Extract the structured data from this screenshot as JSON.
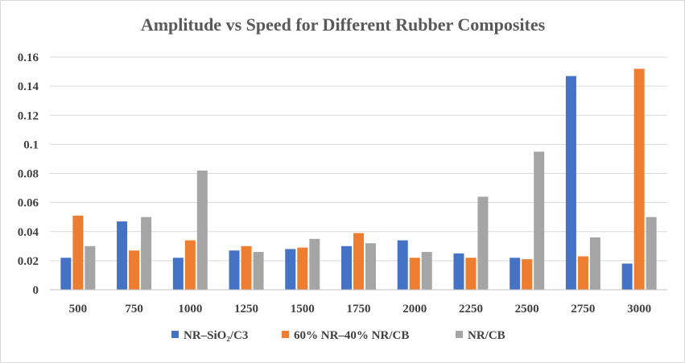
{
  "chart_data": {
    "type": "bar",
    "title": "Amplitude vs Speed for Different Rubber Composites",
    "xlabel": "",
    "ylabel": "",
    "categories": [
      "500",
      "750",
      "1000",
      "1250",
      "1500",
      "1750",
      "2000",
      "2250",
      "2500",
      "2750",
      "3000"
    ],
    "series": [
      {
        "name": "NR–SiO₂/C3",
        "color": "#4472c4",
        "values": [
          0.022,
          0.047,
          0.022,
          0.027,
          0.028,
          0.03,
          0.034,
          0.025,
          0.022,
          0.147,
          0.018
        ]
      },
      {
        "name": "60% NR–40% NR/CB",
        "color": "#ed7d31",
        "values": [
          0.051,
          0.027,
          0.034,
          0.03,
          0.029,
          0.039,
          0.022,
          0.022,
          0.021,
          0.023,
          0.152
        ]
      },
      {
        "name": "NR/CB",
        "color": "#a5a5a5",
        "values": [
          0.03,
          0.05,
          0.082,
          0.026,
          0.035,
          0.032,
          0.026,
          0.064,
          0.095,
          0.036,
          0.05
        ]
      }
    ],
    "ylim": [
      0,
      0.16
    ],
    "yticks": [
      "0",
      "0.02",
      "0.04",
      "0.06",
      "0.08",
      "0.1",
      "0.12",
      "0.14",
      "0.16"
    ],
    "grid": true,
    "legend": "bottom"
  }
}
